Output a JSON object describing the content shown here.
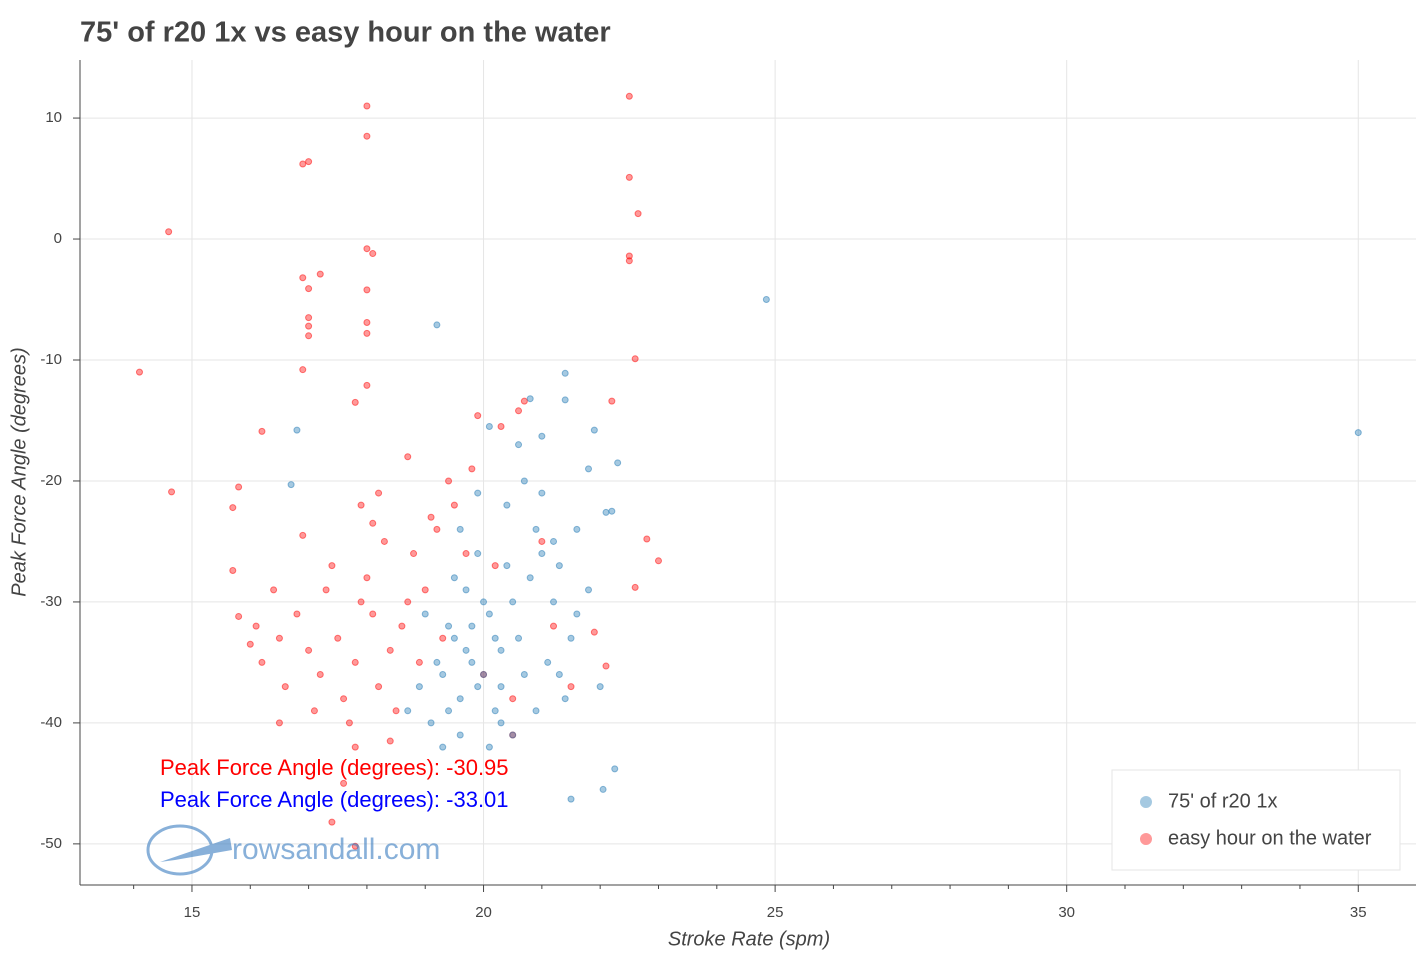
{
  "chart_data": {
    "type": "scatter",
    "title": "75' of r20 1x vs easy hour on the water",
    "x_label": "Stroke Rate (spm)",
    "y_label": "Peak Force Angle (degrees)",
    "xlim": [
      13.08,
      35.99
    ],
    "ylim": [
      -53.4,
      14.8
    ],
    "xticks": [
      15,
      20,
      25,
      30,
      35
    ],
    "yticks": [
      10,
      0,
      -10,
      -20,
      -30,
      -40,
      -50
    ],
    "xminorticks": [
      14,
      16,
      17,
      18,
      19,
      21,
      22,
      23,
      24,
      26,
      27,
      28,
      29,
      31,
      32,
      33,
      34
    ],
    "grid": true,
    "legend": "bottom-right",
    "annotations": [
      {
        "text": "Peak Force Angle (degrees): -30.95",
        "color": "#ff0000"
      },
      {
        "text": "Peak Force Angle (degrees): -33.01",
        "color": "#0000ff"
      }
    ],
    "watermark": "rowsandall.com",
    "series": [
      {
        "name": "75' of r20 1x",
        "color": "#1f77b4",
        "x": [
          24.85,
          35,
          19.2,
          21.4,
          21.4,
          16.8,
          16.7,
          22.3,
          22.1,
          22.25,
          22.05,
          21.5,
          21.9,
          20.8,
          21,
          19.5,
          19.8,
          20.1,
          19.9,
          20.3,
          19.6,
          20.0,
          19.4,
          20.5,
          19.7,
          20.2,
          19.3,
          20.6,
          20.8,
          21.0,
          21.2,
          20.9,
          21.3,
          20.4,
          19.9,
          20.7,
          19.1,
          19.6,
          20.1,
          20.5,
          19.2,
          19.0,
          18.9,
          20.3,
          19.8,
          20.0,
          19.5,
          20.7,
          21.1,
          21.5,
          21.8,
          21.6,
          22.0,
          21.4,
          20.9,
          19.7,
          20.2,
          19.4,
          18.7,
          19.9,
          20.4,
          21.2,
          21.0,
          21.6,
          20.6,
          20.1,
          21.8,
          22.2,
          19.6,
          20.3,
          19.3,
          21.3
        ],
        "values": [
          -5,
          -16,
          -7.1,
          -11.1,
          -13.3,
          -15.8,
          -20.3,
          -18.5,
          -22.6,
          -43.8,
          -45.5,
          -46.3,
          -15.8,
          -13.2,
          -16.3,
          -33,
          -35,
          -31,
          -37,
          -34,
          -38,
          -36,
          -32,
          -30,
          -29,
          -39,
          -36,
          -33,
          -28,
          -26,
          -25,
          -24,
          -27,
          -22,
          -21,
          -20,
          -40,
          -41,
          -42,
          -41,
          -35,
          -31,
          -37,
          -37,
          -32,
          -30,
          -28,
          -36,
          -35,
          -33,
          -29,
          -31,
          -37,
          -38,
          -39,
          -34,
          -33,
          -39,
          -39,
          -26,
          -27,
          -30,
          -21,
          -24,
          -17,
          -15.5,
          -19,
          -22.5,
          -24,
          -40,
          -42,
          -36
        ]
      },
      {
        "name": "easy hour on the water",
        "color": "#ff0000",
        "x": [
          18,
          22.5,
          18,
          17,
          16.9,
          22.5,
          22.65,
          14.6,
          22.5,
          22.5,
          18,
          18.1,
          16.9,
          17.2,
          17,
          18,
          17,
          18,
          17,
          18,
          17,
          22.6,
          14.1,
          16.9,
          18,
          17.8,
          22.2,
          16.2,
          14.65,
          23,
          22.8,
          22.6,
          17.4,
          17.8,
          15.7,
          15.8,
          15.7,
          17.5,
          17.8,
          18.1,
          17.2,
          17.9,
          18.4,
          17.6,
          18.0,
          17.3,
          18.6,
          17.0,
          16.8,
          18.2,
          17.7,
          18.5,
          16.6,
          17.4,
          18.8,
          18.3,
          19.0,
          18.9,
          16.5,
          17.1,
          18.7,
          19.2,
          19.5,
          19.8,
          19.9,
          20.3,
          20.6,
          20.7,
          19.4,
          18.7,
          19.1,
          17.9,
          18.2,
          16.4,
          16.2,
          16.1,
          15.8,
          16.0,
          16.5,
          17.8,
          18.4,
          20.0,
          20.5,
          20.5,
          20.2,
          21.0,
          21.2,
          21.5,
          21.9,
          22.1,
          19.3,
          17.6,
          16.9,
          18.1,
          19.7
        ],
        "values": [
          11,
          11.8,
          8.5,
          6.4,
          6.2,
          5.1,
          2.1,
          0.6,
          -1.4,
          -1.8,
          -0.8,
          -1.2,
          -3.2,
          -2.9,
          -4.1,
          -4.2,
          -6.5,
          -6.9,
          -7.2,
          -7.8,
          -8,
          -9.9,
          -11,
          -10.8,
          -12.1,
          -13.5,
          -13.4,
          -15.9,
          -20.9,
          -26.6,
          -24.8,
          -28.8,
          -48.2,
          -50.2,
          -22.2,
          -20.5,
          -27.4,
          -33,
          -35,
          -31,
          -36,
          -30,
          -34,
          -38,
          -28,
          -29,
          -32,
          -34,
          -31,
          -37,
          -40,
          -39,
          -37,
          -27,
          -26,
          -25,
          -29,
          -35,
          -33,
          -39,
          -30,
          -24,
          -22,
          -19,
          -14.6,
          -15.5,
          -14.2,
          -13.4,
          -20,
          -18,
          -23,
          -22,
          -21,
          -29,
          -35,
          -32,
          -31.2,
          -33.5,
          -40,
          -42,
          -41.5,
          -36,
          -38,
          -41,
          -27,
          -25,
          -32,
          -37,
          -32.5,
          -35.3,
          -33,
          -45,
          -24.5,
          -23.5,
          -26
        ]
      }
    ]
  }
}
